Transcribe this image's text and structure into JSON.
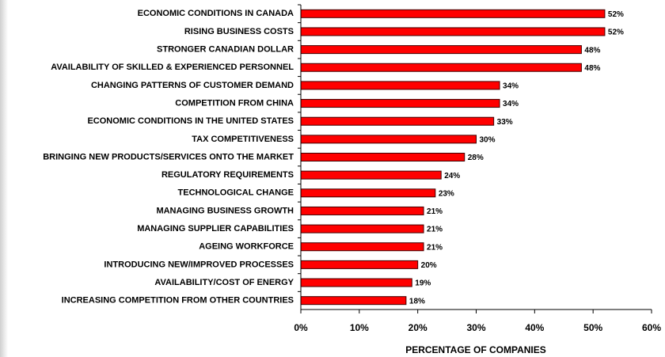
{
  "chart_data": {
    "type": "barh",
    "categories": [
      "ECONOMIC CONDITIONS IN CANADA",
      "RISING BUSINESS COSTS",
      "STRONGER CANADIAN DOLLAR",
      "AVAILABILITY OF SKILLED & EXPERIENCED PERSONNEL",
      "CHANGING PATTERNS OF CUSTOMER DEMAND",
      "COMPETITION FROM CHINA",
      "ECONOMIC CONDITIONS IN THE UNITED STATES",
      "TAX COMPETITIVENESS",
      "BRINGING NEW PRODUCTS/SERVICES ONTO THE MARKET",
      "REGULATORY REQUIREMENTS",
      "TECHNOLOGICAL CHANGE",
      "MANAGING BUSINESS GROWTH",
      "MANAGING SUPPLIER CAPABILITIES",
      "AGEING WORKFORCE",
      "INTRODUCING NEW/IMPROVED PROCESSES",
      "AVAILABILITY/COST OF ENERGY",
      "INCREASING COMPETITION FROM OTHER COUNTRIES"
    ],
    "values": [
      52,
      52,
      48,
      48,
      34,
      34,
      33,
      30,
      28,
      24,
      23,
      21,
      21,
      21,
      20,
      19,
      18
    ],
    "value_labels": [
      "52%",
      "52%",
      "48%",
      "48%",
      "34%",
      "34%",
      "33%",
      "30%",
      "28%",
      "24%",
      "23%",
      "21%",
      "21%",
      "21%",
      "20%",
      "19%",
      "18%"
    ],
    "color": "#ff0000",
    "xlabel": "PERCENTAGE OF COMPANIES",
    "xlim": [
      0,
      60
    ],
    "xticks": [
      {
        "value": 0,
        "label": "0%"
      },
      {
        "value": 10,
        "label": "10%"
      },
      {
        "value": 20,
        "label": "20%"
      },
      {
        "value": 30,
        "label": "30%"
      },
      {
        "value": 40,
        "label": "40%"
      },
      {
        "value": 50,
        "label": "50%"
      },
      {
        "value": 60,
        "label": "60%"
      }
    ],
    "grid": false
  }
}
